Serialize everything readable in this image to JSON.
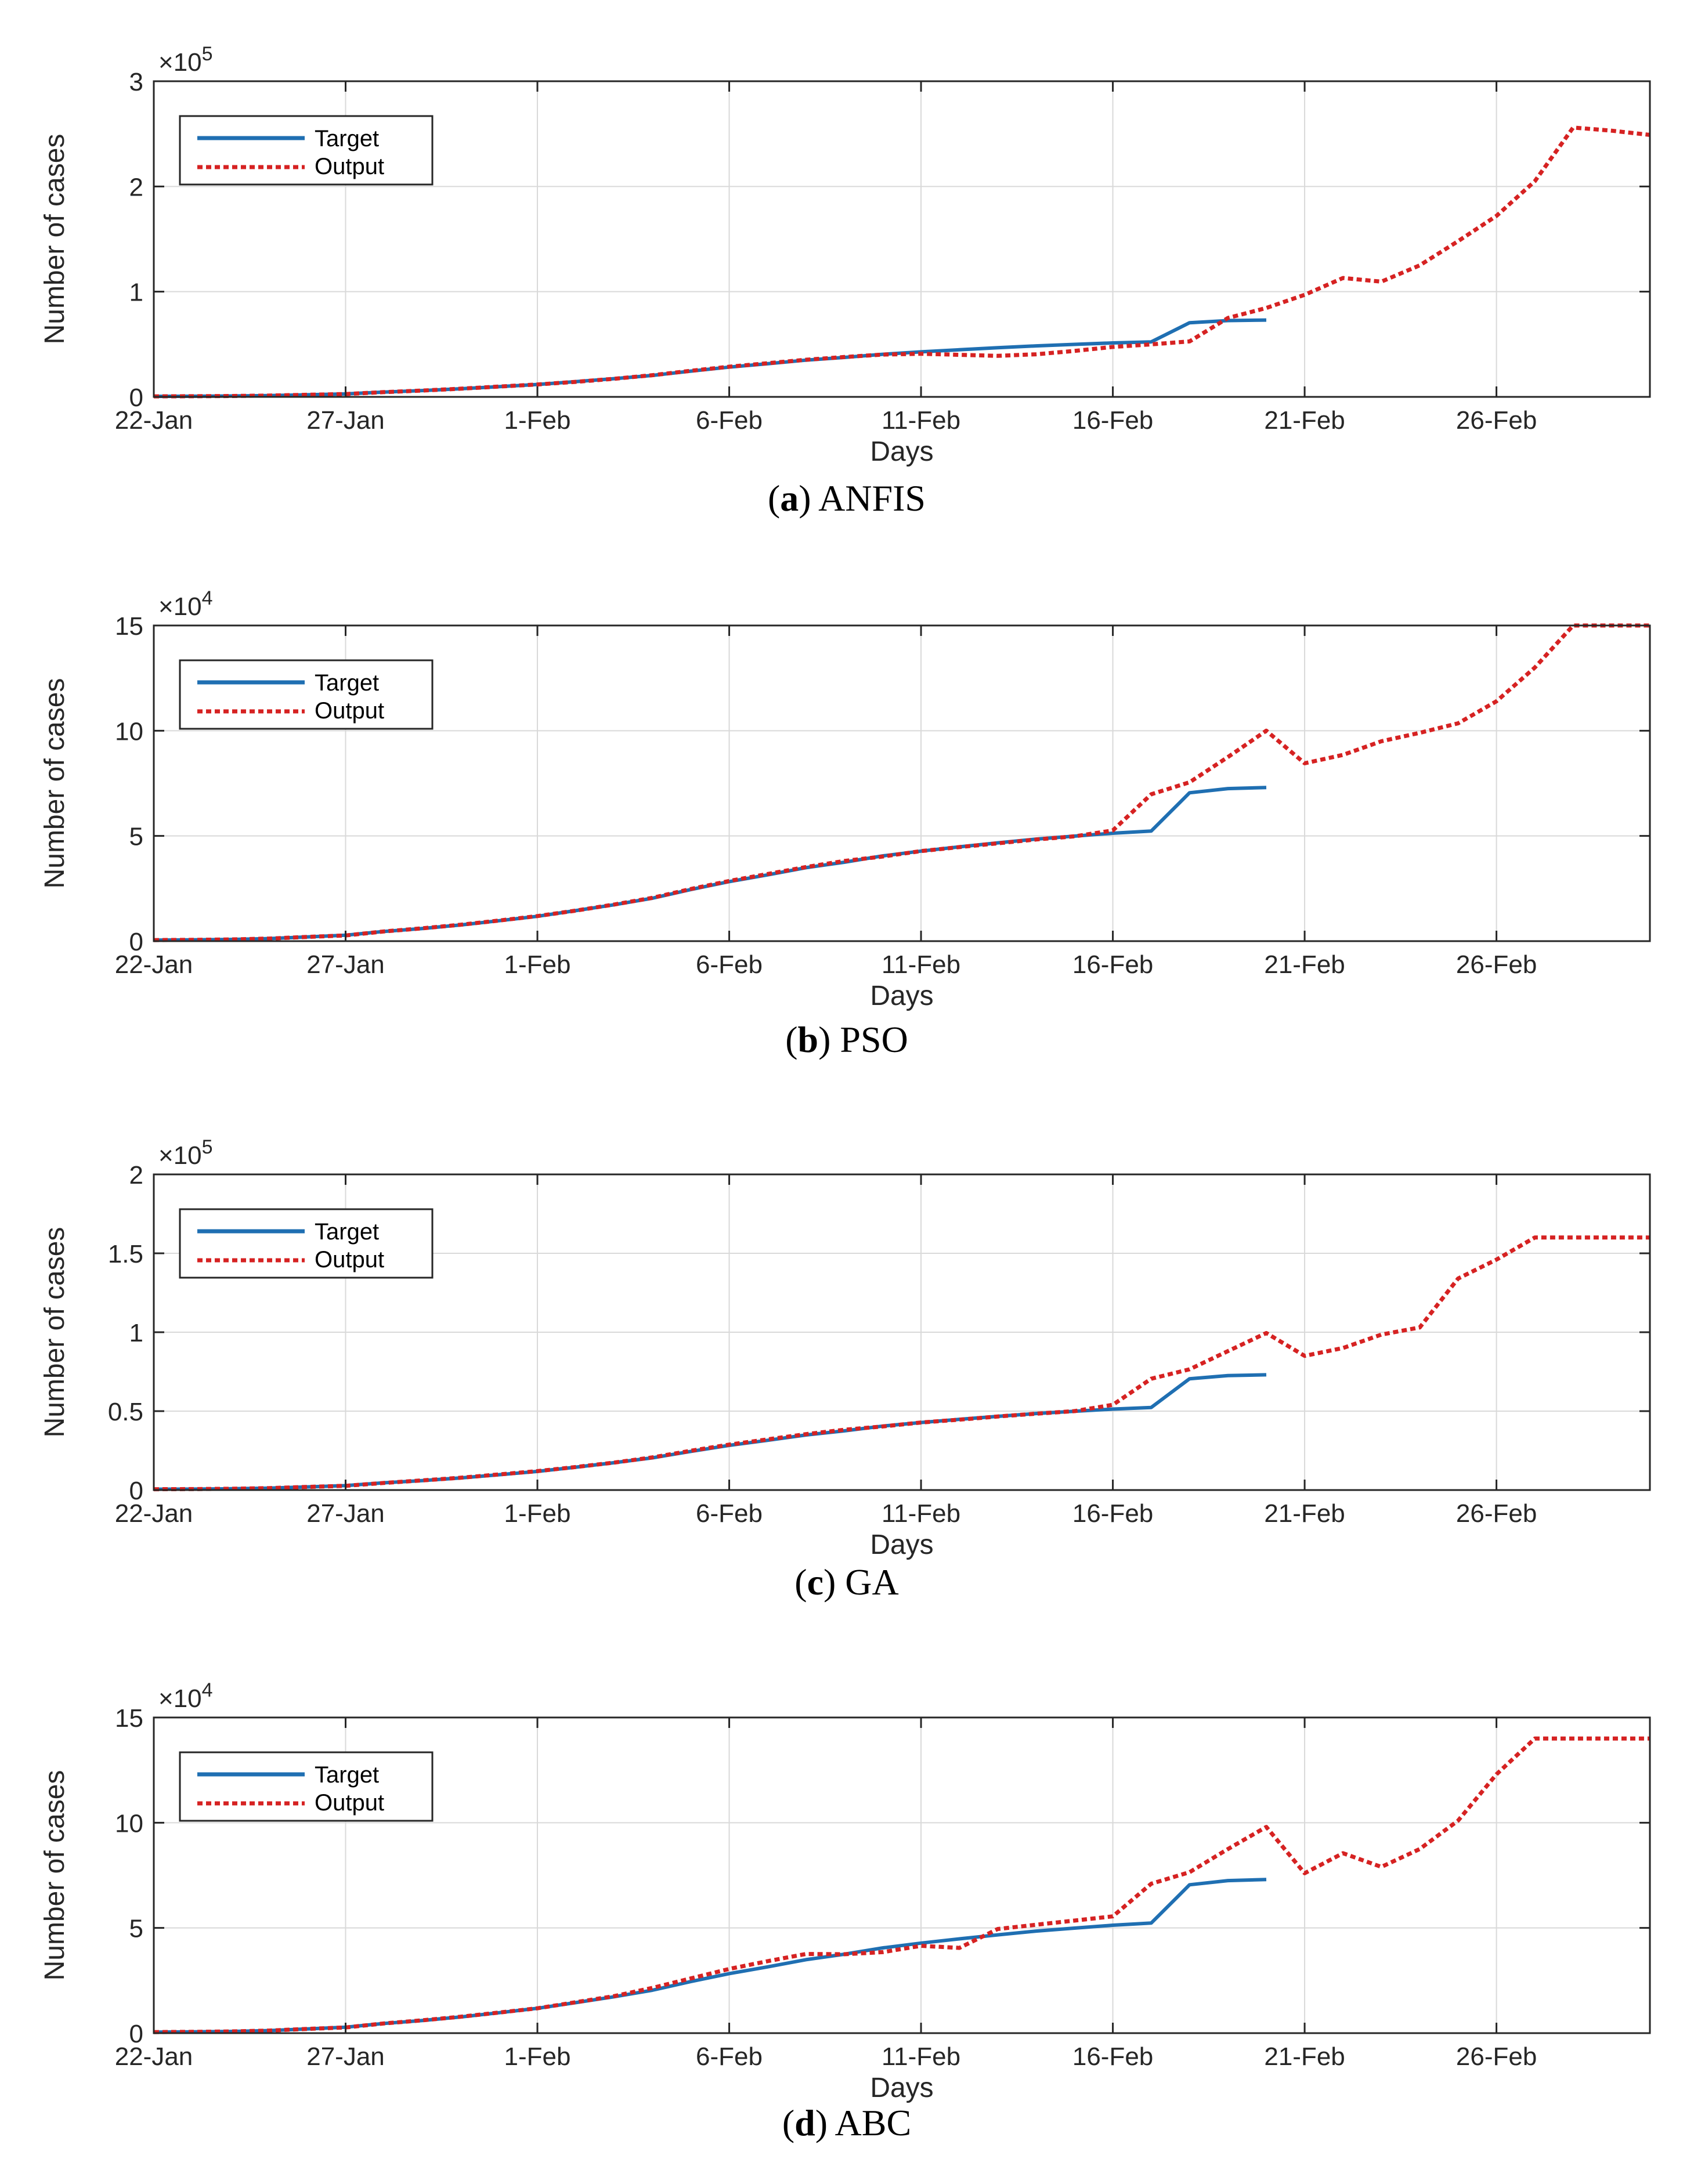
{
  "colors": {
    "target": "#1f6fb2",
    "output": "#d62222",
    "grid": "#d9d9d9",
    "axis": "#262626"
  },
  "chart_data": [
    {
      "type": "line",
      "id": "a",
      "caption_letter": "a",
      "caption_name": "ANFIS",
      "exponent_base": "×10",
      "exponent_power": "5",
      "scale": 100000,
      "ylim": [
        0,
        300000
      ],
      "yticks": [
        0,
        100000,
        200000,
        300000
      ],
      "ytick_labels": [
        "0",
        "1",
        "2",
        "3"
      ],
      "xlim": [
        1,
        40
      ],
      "xticks": [
        1,
        6,
        11,
        16,
        21,
        26,
        31,
        36
      ],
      "xtick_labels": [
        "22-Jan",
        "27-Jan",
        "1-Feb",
        "6-Feb",
        "11-Feb",
        "16-Feb",
        "21-Feb",
        "26-Feb"
      ],
      "xlabel": "Days",
      "ylabel": "Number of cases",
      "legend": [
        "Target",
        "Output"
      ],
      "series": [
        {
          "name": "Target",
          "x": [
            1,
            2,
            3,
            4,
            5,
            6,
            7,
            8,
            9,
            10,
            11,
            12,
            13,
            14,
            15,
            16,
            17,
            18,
            19,
            20,
            21,
            22,
            23,
            24,
            25,
            26,
            27,
            28,
            29,
            30
          ],
          "values": [
            500,
            600,
            800,
            1200,
            2000,
            2800,
            4600,
            6000,
            7700,
            9700,
            11800,
            14500,
            17300,
            20400,
            24500,
            28300,
            31500,
            34900,
            37500,
            40500,
            42800,
            44800,
            46700,
            48500,
            49900,
            51300,
            52300,
            70500,
            72500,
            73000
          ]
        },
        {
          "name": "Output",
          "x": [
            1,
            2,
            3,
            4,
            5,
            6,
            7,
            8,
            9,
            10,
            11,
            12,
            13,
            14,
            15,
            16,
            17,
            18,
            19,
            20,
            21,
            22,
            23,
            24,
            25,
            26,
            27,
            28,
            29,
            30,
            31,
            32,
            33,
            34,
            35,
            36,
            37,
            38,
            39,
            40
          ],
          "values": [
            500,
            600,
            800,
            1200,
            2000,
            2700,
            4500,
            6000,
            7800,
            9800,
            11800,
            14300,
            17200,
            20600,
            24800,
            28700,
            32000,
            35300,
            37900,
            40200,
            41000,
            40000,
            39000,
            40500,
            43700,
            47500,
            49900,
            52700,
            75000,
            84500,
            97000,
            113000,
            109500,
            125000,
            148000,
            172000,
            205000,
            256000,
            253000,
            249000
          ]
        }
      ]
    },
    {
      "type": "line",
      "id": "b",
      "caption_letter": "b",
      "caption_name": "PSO",
      "exponent_base": "×10",
      "exponent_power": "4",
      "scale": 10000,
      "ylim": [
        0,
        150000
      ],
      "yticks": [
        0,
        50000,
        100000,
        150000
      ],
      "ytick_labels": [
        "0",
        "5",
        "10",
        "15"
      ],
      "xlim": [
        1,
        40
      ],
      "xticks": [
        1,
        6,
        11,
        16,
        21,
        26,
        31,
        36
      ],
      "xtick_labels": [
        "22-Jan",
        "27-Jan",
        "1-Feb",
        "6-Feb",
        "11-Feb",
        "16-Feb",
        "21-Feb",
        "26-Feb"
      ],
      "xlabel": "Days",
      "ylabel": "Number of cases",
      "legend": [
        "Target",
        "Output"
      ],
      "series": [
        {
          "name": "Target",
          "x": [
            1,
            2,
            3,
            4,
            5,
            6,
            7,
            8,
            9,
            10,
            11,
            12,
            13,
            14,
            15,
            16,
            17,
            18,
            19,
            20,
            21,
            22,
            23,
            24,
            25,
            26,
            27,
            28,
            29,
            30
          ],
          "values": [
            500,
            600,
            800,
            1200,
            2000,
            2800,
            4600,
            6000,
            7700,
            9700,
            11800,
            14500,
            17300,
            20400,
            24500,
            28300,
            31500,
            34900,
            37500,
            40500,
            42800,
            44800,
            46700,
            48500,
            49900,
            51300,
            52300,
            70500,
            72500,
            73000
          ]
        },
        {
          "name": "Output",
          "x": [
            1,
            2,
            3,
            4,
            5,
            6,
            7,
            8,
            9,
            10,
            11,
            12,
            13,
            14,
            15,
            16,
            17,
            18,
            19,
            20,
            21,
            22,
            23,
            24,
            25,
            26,
            27,
            28,
            29,
            30,
            31,
            32,
            33,
            34,
            35,
            36,
            37,
            38,
            39,
            40
          ],
          "values": [
            500,
            600,
            800,
            1200,
            2000,
            2700,
            4600,
            6100,
            7800,
            9800,
            11900,
            14500,
            17400,
            20600,
            24800,
            28600,
            31900,
            35200,
            38100,
            40200,
            42800,
            44700,
            46500,
            48300,
            49800,
            52600,
            69800,
            75500,
            87500,
            100000,
            84500,
            88500,
            95000,
            99000,
            103500,
            114000,
            130000,
            150000,
            150000,
            150000
          ]
        }
      ]
    },
    {
      "type": "line",
      "id": "c",
      "caption_letter": "c",
      "caption_name": "GA",
      "exponent_base": "×10",
      "exponent_power": "5",
      "scale": 100000,
      "ylim": [
        0,
        200000
      ],
      "yticks": [
        0,
        50000,
        100000,
        150000,
        200000
      ],
      "ytick_labels": [
        "0",
        "0.5",
        "1",
        "1.5",
        "2"
      ],
      "xlim": [
        1,
        40
      ],
      "xticks": [
        1,
        6,
        11,
        16,
        21,
        26,
        31,
        36
      ],
      "xtick_labels": [
        "22-Jan",
        "27-Jan",
        "1-Feb",
        "6-Feb",
        "11-Feb",
        "16-Feb",
        "21-Feb",
        "26-Feb"
      ],
      "xlabel": "Days",
      "ylabel": "Number of cases",
      "legend": [
        "Target",
        "Output"
      ],
      "series": [
        {
          "name": "Target",
          "x": [
            1,
            2,
            3,
            4,
            5,
            6,
            7,
            8,
            9,
            10,
            11,
            12,
            13,
            14,
            15,
            16,
            17,
            18,
            19,
            20,
            21,
            22,
            23,
            24,
            25,
            26,
            27,
            28,
            29,
            30
          ],
          "values": [
            500,
            600,
            800,
            1200,
            2000,
            2800,
            4600,
            6000,
            7700,
            9700,
            11800,
            14500,
            17300,
            20400,
            24500,
            28300,
            31500,
            34900,
            37500,
            40500,
            42800,
            44800,
            46700,
            48500,
            49900,
            51300,
            52300,
            70500,
            72500,
            73000
          ]
        },
        {
          "name": "Output",
          "x": [
            1,
            2,
            3,
            4,
            5,
            6,
            7,
            8,
            9,
            10,
            11,
            12,
            13,
            14,
            15,
            16,
            17,
            18,
            19,
            20,
            21,
            22,
            23,
            24,
            25,
            26,
            27,
            28,
            29,
            30,
            31,
            32,
            33,
            34,
            35,
            36,
            37,
            38,
            39,
            40
          ],
          "values": [
            500,
            600,
            800,
            1200,
            2000,
            2700,
            4500,
            6100,
            7800,
            9900,
            12000,
            14600,
            17400,
            20700,
            24900,
            28800,
            32100,
            35400,
            38200,
            40300,
            42800,
            44600,
            46600,
            48400,
            50000,
            54000,
            70500,
            76500,
            88000,
            99500,
            85000,
            90000,
            98500,
            103000,
            134000,
            146000,
            160000,
            160000,
            160000,
            160000
          ]
        }
      ]
    },
    {
      "type": "line",
      "id": "d",
      "caption_letter": "d",
      "caption_name": "ABC",
      "exponent_base": "×10",
      "exponent_power": "4",
      "scale": 10000,
      "ylim": [
        0,
        150000
      ],
      "yticks": [
        0,
        50000,
        100000,
        150000
      ],
      "ytick_labels": [
        "0",
        "5",
        "10",
        "15"
      ],
      "xlim": [
        1,
        40
      ],
      "xticks": [
        1,
        6,
        11,
        16,
        21,
        26,
        31,
        36
      ],
      "xtick_labels": [
        "22-Jan",
        "27-Jan",
        "1-Feb",
        "6-Feb",
        "11-Feb",
        "16-Feb",
        "21-Feb",
        "26-Feb"
      ],
      "xlabel": "Days",
      "ylabel": "Number of cases",
      "legend": [
        "Target",
        "Output"
      ],
      "series": [
        {
          "name": "Target",
          "x": [
            1,
            2,
            3,
            4,
            5,
            6,
            7,
            8,
            9,
            10,
            11,
            12,
            13,
            14,
            15,
            16,
            17,
            18,
            19,
            20,
            21,
            22,
            23,
            24,
            25,
            26,
            27,
            28,
            29,
            30
          ],
          "values": [
            500,
            600,
            800,
            1200,
            2000,
            2800,
            4600,
            6000,
            7700,
            9700,
            11800,
            14500,
            17300,
            20400,
            24500,
            28300,
            31500,
            34900,
            37500,
            40500,
            42800,
            44800,
            46700,
            48500,
            49900,
            51300,
            52300,
            70500,
            72500,
            73000
          ]
        },
        {
          "name": "Output",
          "x": [
            1,
            2,
            3,
            4,
            5,
            6,
            7,
            8,
            9,
            10,
            11,
            12,
            13,
            14,
            15,
            16,
            17,
            18,
            19,
            20,
            21,
            22,
            23,
            24,
            25,
            26,
            27,
            28,
            29,
            30,
            31,
            32,
            33,
            34,
            35,
            36,
            37,
            38,
            39,
            40
          ],
          "values": [
            500,
            600,
            800,
            1200,
            2000,
            2700,
            4600,
            6100,
            7800,
            9800,
            11800,
            14700,
            17600,
            21500,
            26000,
            30500,
            34200,
            37600,
            37500,
            38500,
            41500,
            40500,
            49500,
            51500,
            53500,
            55500,
            71000,
            76500,
            87500,
            98000,
            76000,
            85500,
            79000,
            87500,
            101000,
            123000,
            140000,
            140000,
            140000,
            140000
          ]
        }
      ]
    }
  ]
}
